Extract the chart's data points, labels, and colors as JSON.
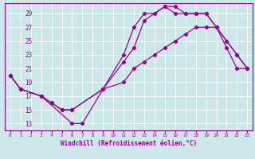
{
  "xlabel": "Windchill (Refroidissement éolien,°C)",
  "xlim": [
    -0.5,
    23.5
  ],
  "ylim": [
    12,
    30.5
  ],
  "yticks": [
    13,
    15,
    17,
    19,
    21,
    23,
    25,
    27,
    29
  ],
  "xticks": [
    0,
    1,
    2,
    3,
    4,
    5,
    6,
    7,
    8,
    9,
    10,
    11,
    12,
    13,
    14,
    15,
    16,
    17,
    18,
    19,
    20,
    21,
    22,
    23
  ],
  "bg_color": "#cce8e8",
  "grid_color": "#ffffff",
  "line_color": "#990099",
  "lines": [
    {
      "x": [
        0,
        1,
        3,
        6,
        7,
        9,
        11,
        12,
        13,
        14,
        15,
        16,
        17,
        18,
        19,
        20,
        21,
        22,
        23
      ],
      "y": [
        20,
        18,
        17,
        13,
        13,
        18,
        23,
        27,
        29,
        29,
        30,
        30,
        29,
        29,
        29,
        27,
        24,
        21,
        21
      ]
    },
    {
      "x": [
        0,
        1,
        3,
        4,
        5,
        6,
        9,
        11,
        12,
        13,
        14,
        15,
        16,
        17,
        18,
        19,
        20,
        21,
        22,
        23
      ],
      "y": [
        20,
        18,
        17,
        16,
        15,
        15,
        18,
        22,
        24,
        28,
        29,
        30,
        29,
        29,
        29,
        29,
        27,
        25,
        23,
        21
      ]
    },
    {
      "x": [
        0,
        1,
        3,
        4,
        5,
        6,
        9,
        11,
        12,
        13,
        14,
        15,
        16,
        17,
        18,
        19,
        20,
        21,
        22,
        23
      ],
      "y": [
        20,
        18,
        17,
        16,
        15,
        15,
        18,
        19,
        21,
        22,
        23,
        24,
        25,
        26,
        27,
        27,
        27,
        25,
        23,
        21
      ]
    }
  ]
}
